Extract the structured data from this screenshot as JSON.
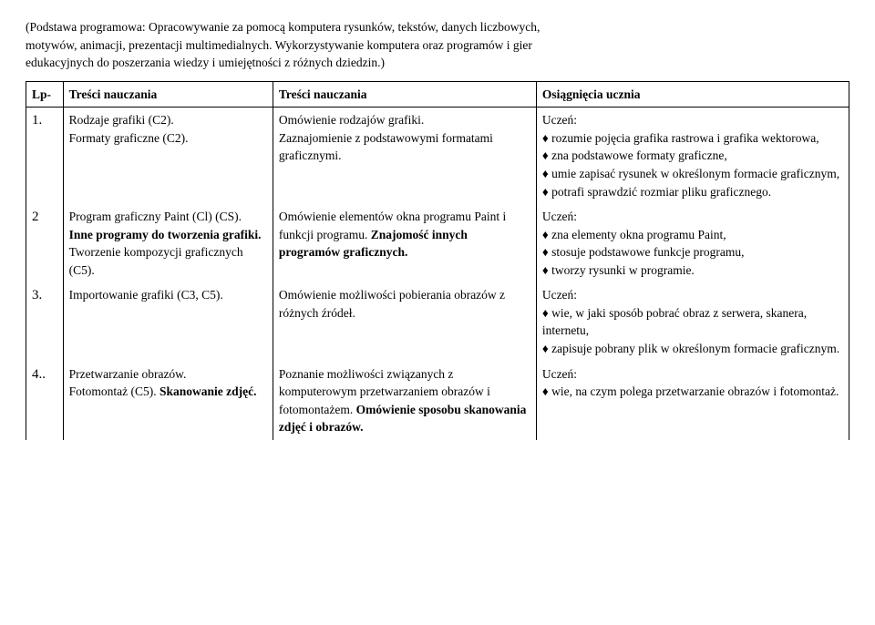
{
  "intro": {
    "line1": "(Podstawa programowa: Opracowywanie za pomocą komputera rysunków, tekstów, danych liczbowych,",
    "line2": "motywów, animacji, prezentacji multimedialnych. Wykorzystywanie komputera oraz programów i gier",
    "line3": "edukacyjnych do poszerzania wiedzy i umiejętności z różnych dziedzin.)"
  },
  "header": {
    "lp": "Lp-",
    "c1": "Treści nauczania",
    "c2": "Treści nauczania",
    "c3": "Osiągnięcia ucznia"
  },
  "rows": {
    "r1": {
      "lp": "1.",
      "c1a": "Rodzaje grafiki (C2).",
      "c1b": "Formaty graficzne (C2).",
      "c2a": "Omówienie rodzajów grafiki.",
      "c2b": "Zaznajomienie z podstawowymi formatami graficznymi.",
      "u": "Uczeń:",
      "li1": "rozumie pojęcia grafika rastrowa i grafika wektorowa,",
      "li2": "zna podstawowe formaty graficzne,",
      "li3": "umie zapisać rysunek w określonym formacie graficznym,",
      "li4": "potrafi sprawdzić rozmiar pliku graficznego."
    },
    "r2": {
      "lp": "2",
      "c1a": "Program graficzny Paint (Cl) (CS). ",
      "c1b_bold": "Inne programy do tworzenia grafiki.",
      "c1c": "Tworzenie kompozycji graficznych (C5).",
      "c2a": "Omówienie elementów okna programu Paint i funkcji programu. ",
      "c2b_bold": "Znajomość innych programów graficznych.",
      "u": "Uczeń:",
      "li1": "zna elementy okna programu Paint,",
      "li2": "stosuje podstawowe funkcje programu,",
      "li3": "tworzy rysunki w programie."
    },
    "r3": {
      "lp": "3.",
      "c1": "Importowanie grafiki (C3, C5).",
      "c2": "Omówienie możliwości pobierania obrazów z różnych źródeł.",
      "u": "Uczeń:",
      "li1": "wie, w jaki sposób pobrać obraz z serwera, skanera, internetu,",
      "li2": "zapisuje pobrany plik w określonym formacie graficznym."
    },
    "r4": {
      "lp": "4..",
      "c1a": "Przetwarzanie obrazów.",
      "c1b": "Fotomontaż (C5). ",
      "c1c_bold": "Skanowanie zdjęć.",
      "c2a": "Poznanie możliwości związanych z komputerowym przetwarzaniem obrazów i fotomontażem. ",
      "c2b_bold": "Omówienie sposobu skanowania zdjęć i obrazów.",
      "u": "Uczeń:",
      "li1": "wie, na czym polega przetwarzanie obrazów i fotomontaż."
    }
  }
}
